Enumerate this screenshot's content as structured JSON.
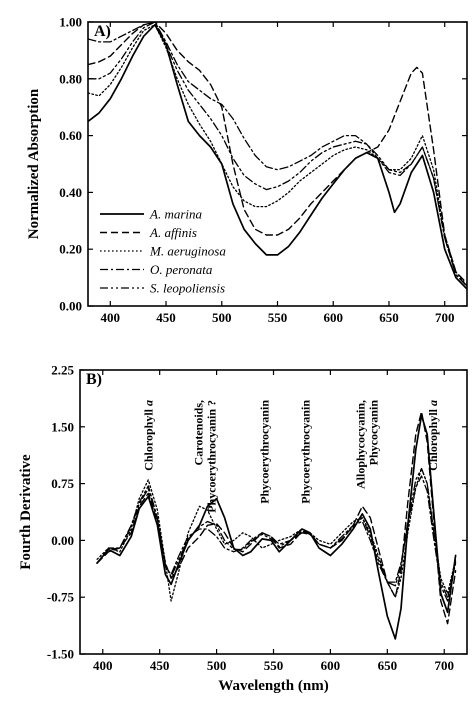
{
  "chart_data": [
    {
      "type": "line",
      "panel_label": "A)",
      "xlabel": "",
      "ylabel": "Normalized Absorption",
      "xlim": [
        380,
        720
      ],
      "ylim": [
        0.0,
        1.0
      ],
      "xticks": [
        400,
        450,
        500,
        550,
        600,
        650,
        700
      ],
      "yticks": [
        "0.00",
        "0.20",
        "0.40",
        "0.60",
        "0.80",
        "1.00"
      ],
      "legend_position": "bottom-left",
      "series": [
        {
          "name": "A. marina",
          "style": "solid",
          "x": [
            380,
            390,
            400,
            410,
            420,
            430,
            440,
            450,
            460,
            470,
            480,
            490,
            500,
            510,
            520,
            530,
            540,
            550,
            560,
            570,
            580,
            590,
            600,
            610,
            620,
            630,
            640,
            650,
            655,
            660,
            670,
            680,
            690,
            700,
            710,
            720
          ],
          "y": [
            0.65,
            0.68,
            0.73,
            0.8,
            0.88,
            0.95,
            0.99,
            0.92,
            0.78,
            0.65,
            0.6,
            0.56,
            0.5,
            0.36,
            0.27,
            0.22,
            0.18,
            0.18,
            0.21,
            0.26,
            0.32,
            0.38,
            0.43,
            0.48,
            0.52,
            0.54,
            0.52,
            0.4,
            0.33,
            0.36,
            0.47,
            0.53,
            0.4,
            0.2,
            0.1,
            0.06
          ]
        },
        {
          "name": "A. affinis",
          "style": "dashed",
          "x": [
            380,
            390,
            400,
            410,
            420,
            430,
            440,
            450,
            460,
            470,
            480,
            490,
            500,
            510,
            520,
            530,
            540,
            550,
            560,
            570,
            580,
            590,
            600,
            610,
            620,
            630,
            640,
            650,
            660,
            670,
            675,
            680,
            690,
            700,
            710,
            720
          ],
          "y": [
            0.85,
            0.86,
            0.88,
            0.92,
            0.96,
            0.99,
            1.0,
            0.96,
            0.9,
            0.86,
            0.83,
            0.78,
            0.7,
            0.5,
            0.34,
            0.27,
            0.25,
            0.25,
            0.27,
            0.31,
            0.36,
            0.4,
            0.44,
            0.48,
            0.52,
            0.54,
            0.56,
            0.62,
            0.72,
            0.82,
            0.84,
            0.82,
            0.55,
            0.25,
            0.12,
            0.08
          ]
        },
        {
          "name": "M. aeruginosa",
          "style": "dotted",
          "x": [
            380,
            390,
            400,
            410,
            420,
            430,
            440,
            450,
            460,
            470,
            480,
            490,
            500,
            510,
            520,
            530,
            540,
            550,
            560,
            570,
            580,
            590,
            600,
            610,
            620,
            630,
            640,
            650,
            660,
            670,
            680,
            690,
            700,
            710,
            720
          ],
          "y": [
            0.75,
            0.74,
            0.78,
            0.84,
            0.91,
            0.97,
            0.99,
            0.91,
            0.8,
            0.71,
            0.64,
            0.58,
            0.5,
            0.42,
            0.37,
            0.35,
            0.35,
            0.37,
            0.4,
            0.44,
            0.47,
            0.5,
            0.53,
            0.55,
            0.56,
            0.55,
            0.52,
            0.48,
            0.48,
            0.52,
            0.6,
            0.48,
            0.25,
            0.12,
            0.07
          ]
        },
        {
          "name": "O. peronata",
          "style": "dashdot",
          "x": [
            380,
            390,
            400,
            410,
            420,
            430,
            440,
            450,
            460,
            470,
            480,
            490,
            500,
            510,
            520,
            530,
            540,
            550,
            560,
            570,
            580,
            590,
            600,
            610,
            620,
            630,
            640,
            650,
            660,
            670,
            680,
            690,
            700,
            710,
            720
          ],
          "y": [
            0.94,
            0.93,
            0.93,
            0.95,
            0.97,
            0.99,
            1.0,
            0.93,
            0.85,
            0.79,
            0.76,
            0.73,
            0.71,
            0.66,
            0.59,
            0.53,
            0.49,
            0.48,
            0.49,
            0.51,
            0.53,
            0.56,
            0.58,
            0.6,
            0.6,
            0.57,
            0.52,
            0.47,
            0.46,
            0.5,
            0.56,
            0.45,
            0.24,
            0.11,
            0.07
          ]
        },
        {
          "name": "S. leopoliensis",
          "style": "dashdotdot",
          "x": [
            380,
            390,
            400,
            410,
            420,
            430,
            440,
            450,
            460,
            470,
            480,
            490,
            500,
            510,
            520,
            530,
            540,
            550,
            560,
            570,
            580,
            590,
            600,
            610,
            620,
            630,
            640,
            650,
            660,
            670,
            680,
            690,
            700,
            710,
            720
          ],
          "y": [
            0.8,
            0.8,
            0.82,
            0.87,
            0.93,
            0.98,
            1.0,
            0.92,
            0.83,
            0.76,
            0.71,
            0.66,
            0.6,
            0.52,
            0.46,
            0.43,
            0.41,
            0.42,
            0.44,
            0.47,
            0.51,
            0.54,
            0.56,
            0.57,
            0.58,
            0.57,
            0.53,
            0.48,
            0.47,
            0.5,
            0.56,
            0.45,
            0.24,
            0.11,
            0.07
          ]
        }
      ]
    },
    {
      "type": "line",
      "panel_label": "B)",
      "xlabel": "Wavelength (nm)",
      "ylabel": "Fourth Derivative",
      "xlim": [
        380,
        720
      ],
      "ylim": [
        -1.5,
        2.25
      ],
      "xticks": [
        400,
        450,
        500,
        550,
        600,
        650,
        700
      ],
      "yticks": [
        "-1.50",
        "-0.75",
        "0.00",
        "0.75",
        "1.50",
        "2.25"
      ],
      "annotations": [
        {
          "lines": [
            "Chlorophyll a"
          ],
          "x": 440,
          "italic_suffix": "a"
        },
        {
          "lines": [
            "Carotenoids,",
            "Phycoerythrocyanin ?"
          ],
          "x": 490
        },
        {
          "lines": [
            "Phycoerythrocyanin"
          ],
          "x": 542
        },
        {
          "lines": [
            "Phycoerythrocyanin"
          ],
          "x": 578
        },
        {
          "lines": [
            "Allophycocyanin,",
            "Phycocyanin"
          ],
          "x": 632
        },
        {
          "lines": [
            "Chlorophyll a"
          ],
          "x": 690,
          "italic_suffix": "a"
        }
      ],
      "series": [
        {
          "name": "A. marina",
          "style": "solid",
          "x": [
            395,
            405,
            415,
            425,
            432,
            440,
            448,
            455,
            460,
            467,
            475,
            485,
            492,
            500,
            507,
            515,
            523,
            530,
            540,
            548,
            555,
            565,
            575,
            582,
            590,
            600,
            610,
            620,
            628,
            635,
            642,
            650,
            657,
            662,
            668,
            675,
            680,
            685,
            690,
            697,
            703,
            710
          ],
          "y": [
            -0.3,
            -0.12,
            -0.2,
            0.05,
            0.42,
            0.58,
            0.2,
            -0.45,
            -0.58,
            -0.3,
            0.0,
            0.2,
            0.45,
            0.55,
            0.3,
            -0.1,
            -0.2,
            -0.15,
            0.02,
            0.0,
            -0.15,
            0.0,
            0.15,
            0.1,
            -0.1,
            -0.2,
            -0.05,
            0.15,
            0.35,
            0.15,
            -0.4,
            -1.0,
            -1.3,
            -0.9,
            0.2,
            1.2,
            1.65,
            1.4,
            0.5,
            -0.7,
            -0.95,
            -0.2
          ]
        },
        {
          "name": "A. affinis",
          "style": "dashed",
          "x": [
            395,
            405,
            415,
            425,
            432,
            440,
            448,
            455,
            460,
            467,
            475,
            485,
            492,
            500,
            507,
            515,
            523,
            530,
            540,
            548,
            555,
            565,
            575,
            582,
            590,
            600,
            610,
            620,
            628,
            635,
            642,
            650,
            657,
            662,
            668,
            675,
            680,
            685,
            690,
            697,
            703,
            710
          ],
          "y": [
            -0.3,
            -0.15,
            -0.1,
            0.1,
            0.45,
            0.62,
            0.25,
            -0.3,
            -0.5,
            -0.35,
            -0.1,
            0.05,
            0.2,
            0.22,
            0.1,
            -0.1,
            -0.15,
            -0.05,
            0.1,
            0.05,
            -0.1,
            -0.05,
            0.12,
            0.1,
            -0.05,
            -0.1,
            0.0,
            0.2,
            0.45,
            0.3,
            -0.1,
            -0.55,
            -0.75,
            -0.4,
            0.5,
            1.4,
            1.7,
            1.3,
            0.4,
            -0.8,
            -1.1,
            -0.4
          ]
        },
        {
          "name": "M. aeruginosa",
          "style": "dotted",
          "x": [
            395,
            405,
            415,
            425,
            432,
            440,
            448,
            455,
            460,
            467,
            475,
            485,
            492,
            500,
            507,
            515,
            523,
            530,
            540,
            548,
            555,
            565,
            575,
            582,
            590,
            600,
            610,
            620,
            628,
            635,
            642,
            650,
            657,
            662,
            668,
            675,
            680,
            685,
            690,
            697,
            703,
            710
          ],
          "y": [
            -0.25,
            -0.1,
            -0.15,
            0.15,
            0.55,
            0.8,
            0.4,
            -0.3,
            -0.8,
            -0.4,
            0.1,
            0.45,
            0.4,
            0.15,
            -0.05,
            0.0,
            0.1,
            0.05,
            -0.1,
            -0.05,
            0.0,
            0.05,
            0.15,
            0.1,
            0.0,
            -0.05,
            0.1,
            0.25,
            0.3,
            0.1,
            -0.2,
            -0.55,
            -0.75,
            -0.5,
            0.1,
            0.7,
            0.95,
            0.75,
            0.2,
            -0.5,
            -0.7,
            -0.25
          ]
        },
        {
          "name": "O. peronata",
          "style": "dashdot",
          "x": [
            395,
            405,
            415,
            425,
            432,
            440,
            448,
            455,
            460,
            467,
            475,
            485,
            492,
            500,
            507,
            515,
            523,
            530,
            540,
            548,
            555,
            565,
            575,
            582,
            590,
            600,
            610,
            620,
            628,
            635,
            642,
            650,
            657,
            662,
            668,
            675,
            680,
            685,
            690,
            697,
            703,
            710
          ],
          "y": [
            -0.3,
            -0.1,
            -0.1,
            0.2,
            0.5,
            0.72,
            0.3,
            -0.35,
            -0.45,
            -0.2,
            0.05,
            0.15,
            0.15,
            0.05,
            -0.1,
            -0.15,
            -0.1,
            0.0,
            0.1,
            0.05,
            -0.05,
            0.0,
            0.1,
            0.08,
            -0.05,
            -0.1,
            0.05,
            0.2,
            0.25,
            0.0,
            -0.3,
            -0.55,
            -0.55,
            -0.3,
            0.2,
            0.7,
            0.85,
            0.65,
            0.1,
            -0.6,
            -0.8,
            -0.3
          ]
        },
        {
          "name": "S. leopoliensis",
          "style": "dashdotdot",
          "x": [
            395,
            405,
            415,
            425,
            432,
            440,
            448,
            455,
            460,
            467,
            475,
            485,
            492,
            500,
            507,
            515,
            523,
            530,
            540,
            548,
            555,
            565,
            575,
            582,
            590,
            600,
            610,
            620,
            628,
            635,
            642,
            650,
            657,
            662,
            668,
            675,
            680,
            685,
            690,
            697,
            703,
            710
          ],
          "y": [
            -0.3,
            -0.12,
            -0.1,
            0.18,
            0.48,
            0.68,
            0.28,
            -0.32,
            -0.48,
            -0.25,
            0.02,
            0.18,
            0.25,
            0.2,
            0.0,
            -0.12,
            -0.12,
            -0.02,
            0.08,
            0.02,
            -0.08,
            0.0,
            0.12,
            0.08,
            -0.05,
            -0.1,
            0.02,
            0.18,
            0.3,
            0.05,
            -0.25,
            -0.55,
            -0.6,
            -0.35,
            0.25,
            0.8,
            0.95,
            0.75,
            0.2,
            -0.55,
            -0.75,
            -0.28
          ]
        }
      ]
    }
  ]
}
